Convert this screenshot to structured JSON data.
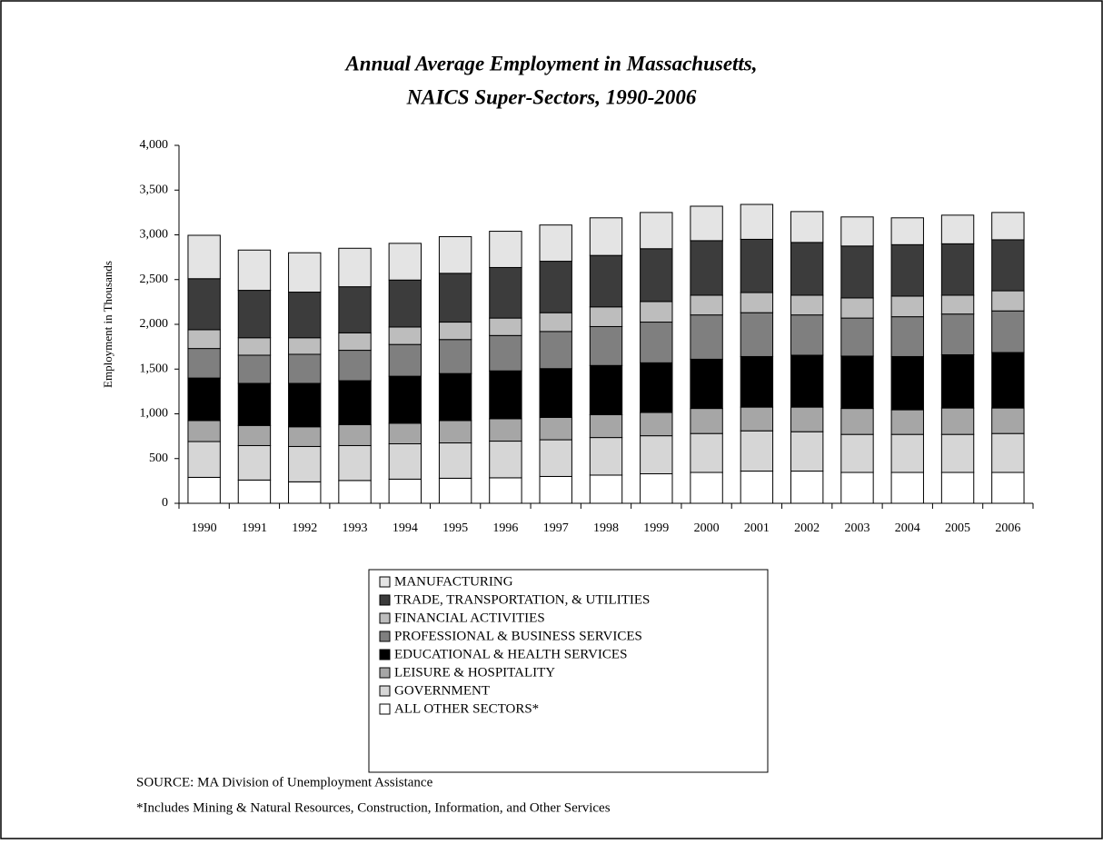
{
  "chart_data": {
    "type": "stacked_bar",
    "title": [
      "Annual Average Employment in Massachusetts,",
      "NAICS Super-Sectors, 1990-2006"
    ],
    "y_label": "Employment in Thousands",
    "categories": [
      "1990",
      "1991",
      "1992",
      "1993",
      "1994",
      "1995",
      "1996",
      "1997",
      "1998",
      "1999",
      "2000",
      "2001",
      "2002",
      "2003",
      "2004",
      "2005",
      "2006"
    ],
    "series": [
      {
        "name": "MANUFACTURING",
        "color": "#e4e4e4",
        "values": [
          485,
          450,
          440,
          430,
          410,
          410,
          405,
          405,
          420,
          405,
          385,
          390,
          345,
          325,
          300,
          320,
          305
        ]
      },
      {
        "name": "TRADE, TRANSPORTATION, & UTILITIES",
        "color": "#3c3c3c",
        "values": [
          570,
          530,
          510,
          515,
          525,
          545,
          565,
          575,
          575,
          590,
          610,
          595,
          590,
          580,
          575,
          575,
          570
        ]
      },
      {
        "name": "FINANCIAL ACTIVITIES",
        "color": "#bdbdbd",
        "values": [
          210,
          195,
          185,
          195,
          195,
          195,
          195,
          210,
          220,
          230,
          220,
          225,
          220,
          225,
          230,
          210,
          225
        ]
      },
      {
        "name": "PROFESSIONAL & BUSINESS SERVICES",
        "color": "#7f7f7f",
        "values": [
          330,
          315,
          325,
          340,
          355,
          380,
          395,
          415,
          435,
          455,
          495,
          490,
          450,
          425,
          445,
          455,
          465
        ]
      },
      {
        "name": "EDUCATIONAL & HEALTH SERVICES",
        "color": "#000000",
        "values": [
          475,
          470,
          485,
          490,
          525,
          525,
          535,
          545,
          550,
          555,
          550,
          565,
          580,
          585,
          595,
          595,
          620
        ]
      },
      {
        "name": "LEISURE & HOSPITALITY",
        "color": "#a6a6a6",
        "values": [
          235,
          225,
          220,
          235,
          230,
          250,
          250,
          250,
          255,
          260,
          280,
          265,
          275,
          290,
          275,
          295,
          285
        ]
      },
      {
        "name": "GOVERNMENT",
        "color": "#d6d6d6",
        "values": [
          400,
          385,
          395,
          390,
          395,
          395,
          410,
          410,
          420,
          425,
          435,
          450,
          440,
          425,
          425,
          425,
          435
        ]
      },
      {
        "name": "ALL OTHER SECTORS*",
        "color": "#ffffff",
        "values": [
          290,
          260,
          240,
          255,
          270,
          280,
          285,
          300,
          315,
          330,
          345,
          360,
          360,
          345,
          345,
          345,
          345
        ]
      }
    ],
    "ylim": [
      0,
      4000
    ],
    "yticks": [
      0,
      500,
      {
        "value": 1000,
        "label": "1,000"
      },
      {
        "value": 1500,
        "label": "1,500"
      },
      {
        "value": 2000,
        "label": "2,000"
      },
      {
        "value": 2500,
        "label": "2,500"
      },
      {
        "value": 3000,
        "label": "3,000"
      },
      {
        "value": 3500,
        "label": "3,500"
      },
      {
        "value": 4000,
        "label": "4,000"
      }
    ],
    "grid": false,
    "source": "SOURCE:  MA Division of Unemployment Assistance",
    "footnote": "*Includes Mining & Natural Resources, Construction, Information, and Other Services"
  }
}
